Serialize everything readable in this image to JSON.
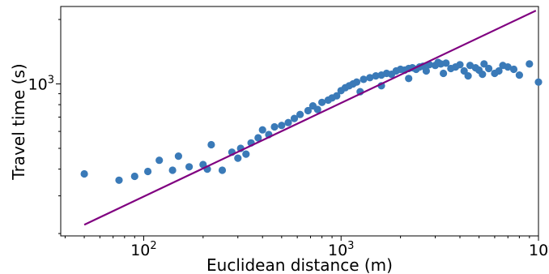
{
  "chart_data": {
    "type": "scatter",
    "title": "",
    "xlabel": "Euclidean distance (m)",
    "ylabel": "Travel time (s)",
    "xscale": "log",
    "yscale": "log",
    "xlim": [
      38,
      10000
    ],
    "ylim": [
      195,
      2300
    ],
    "grid": false,
    "legend": "none",
    "x_ticks": [
      {
        "value": 100,
        "base": "10",
        "exp": "2"
      },
      {
        "value": 1000,
        "base": "10",
        "exp": "3"
      },
      {
        "value": 10000,
        "base": "10",
        "exp": "4"
      }
    ],
    "y_ticks": [
      {
        "value": 1000,
        "base": "10",
        "exp": "3"
      }
    ],
    "colors": {
      "points": "#3a7ab8",
      "fit_line": "#800080"
    },
    "series": [
      {
        "kind": "points",
        "x": [
          50,
          75,
          90,
          105,
          120,
          140,
          150,
          170,
          200,
          210,
          220,
          250,
          280,
          300,
          310,
          330,
          350,
          380,
          400,
          430,
          460,
          500,
          540,
          580,
          620,
          680,
          720,
          760,
          800,
          860,
          900,
          950,
          1000,
          1050,
          1100,
          1150,
          1200,
          1300,
          1400,
          1500,
          1600,
          1700,
          1800,
          1900,
          2000,
          2100,
          2200,
          2300,
          2400,
          2500,
          2600,
          2800,
          3000,
          3200,
          3400,
          3600,
          3800,
          4000,
          4200,
          4500,
          4800,
          5000,
          5300,
          5600,
          6000,
          6300,
          6600,
          7000,
          7500,
          8000,
          9000,
          10000,
          1250,
          1600,
          2200,
          2700,
          3100,
          3300,
          4400,
          5200
        ],
        "y": [
          380,
          355,
          370,
          390,
          440,
          395,
          460,
          410,
          420,
          400,
          520,
          395,
          480,
          450,
          500,
          470,
          530,
          560,
          610,
          580,
          630,
          640,
          660,
          690,
          720,
          750,
          790,
          760,
          820,
          840,
          860,
          880,
          930,
          960,
          980,
          1000,
          1020,
          1050,
          1070,
          1090,
          1100,
          1120,
          1110,
          1150,
          1170,
          1160,
          1180,
          1190,
          1170,
          1200,
          1210,
          1230,
          1220,
          1240,
          1250,
          1180,
          1200,
          1230,
          1150,
          1220,
          1190,
          1160,
          1240,
          1180,
          1120,
          1150,
          1220,
          1200,
          1170,
          1100,
          1240,
          1020,
          920,
          980,
          1060,
          1150,
          1260,
          1120,
          1090,
          1110
        ]
      },
      {
        "kind": "fit-line",
        "x": [
          50,
          9700
        ],
        "y": [
          220,
          2200
        ]
      }
    ]
  }
}
